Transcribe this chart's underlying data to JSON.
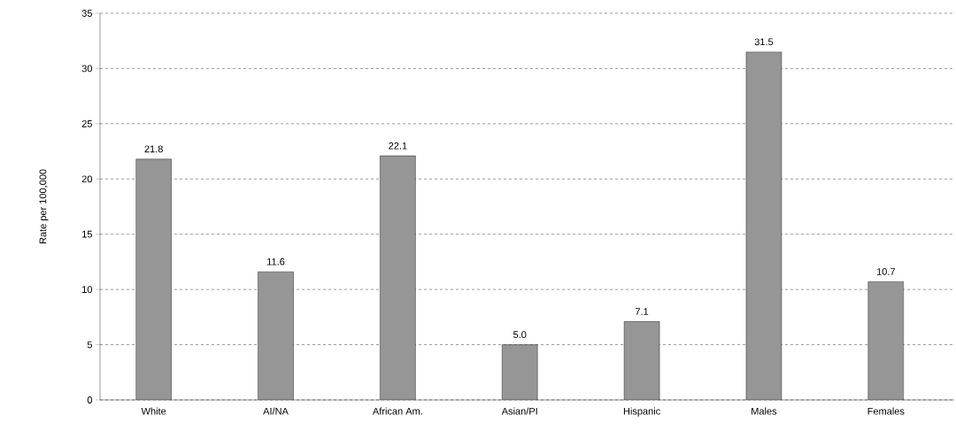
{
  "chart_data": {
    "type": "bar",
    "ylabel": "Rate per 100,000",
    "categories": [
      "White",
      "AI/NA",
      "African Am.",
      "Asian/PI",
      "Hispanic",
      "Males",
      "Females"
    ],
    "values": [
      21.8,
      11.6,
      22.1,
      5.0,
      7.1,
      31.5,
      10.7
    ],
    "color": "#969696",
    "ylim": [
      0,
      35
    ],
    "yticks": [
      0,
      5,
      10,
      15,
      20,
      25,
      30,
      35
    ],
    "value_labels": [
      "21.8",
      "11.6",
      "22.1",
      "5.0",
      "7.1",
      "31.5",
      "10.7"
    ],
    "grid": "y"
  }
}
